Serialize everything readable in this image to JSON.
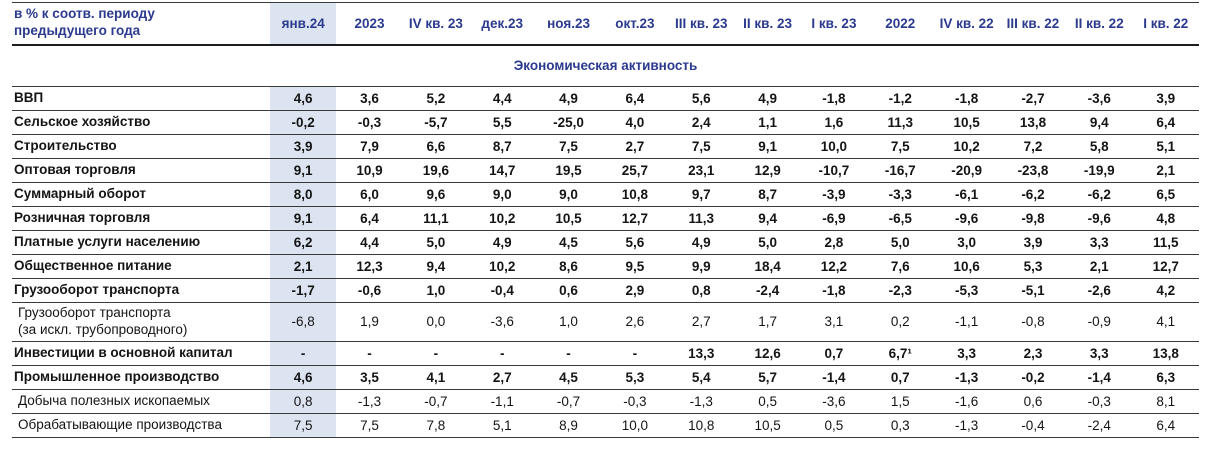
{
  "colors": {
    "header_text": "#2b3a8f",
    "highlight_bg": "#dde4f1",
    "value_text": "#141414",
    "border": "#3a3a3a"
  },
  "header": {
    "corner_label": "в % к соотв. периоду\nпредыдущего года"
  },
  "section_title": "Экономическая активность",
  "table": {
    "highlight_column": "янв.24",
    "highlight_column_index": 0,
    "columns": [
      "янв.24",
      "2023",
      "IV кв. 23",
      "дек.23",
      "ноя.23",
      "окт.23",
      "III кв. 23",
      "II кв. 23",
      "I кв. 23",
      "2022",
      "IV кв. 22",
      "III кв. 22",
      "II кв. 22",
      "I кв. 22"
    ],
    "rows": [
      {
        "label": "ВВП",
        "bold": true,
        "sub": false,
        "values": [
          "4,6",
          "3,6",
          "5,2",
          "4,4",
          "4,9",
          "6,4",
          "5,6",
          "4,9",
          "-1,8",
          "-1,2",
          "-1,8",
          "-2,7",
          "-3,6",
          "3,9"
        ]
      },
      {
        "label": "Сельское хозяйство",
        "bold": true,
        "sub": false,
        "values": [
          "-0,2",
          "-0,3",
          "-5,7",
          "5,5",
          "-25,0",
          "4,0",
          "2,4",
          "1,1",
          "1,6",
          "11,3",
          "10,5",
          "13,8",
          "9,4",
          "6,4"
        ]
      },
      {
        "label": "Строительство",
        "bold": true,
        "sub": false,
        "values": [
          "3,9",
          "7,9",
          "6,6",
          "8,7",
          "7,5",
          "2,7",
          "7,5",
          "9,1",
          "10,0",
          "7,5",
          "10,2",
          "7,2",
          "5,8",
          "5,1"
        ]
      },
      {
        "label": "Оптовая торговля",
        "bold": true,
        "sub": false,
        "values": [
          "9,1",
          "10,9",
          "19,6",
          "14,7",
          "19,5",
          "25,7",
          "23,1",
          "12,9",
          "-10,7",
          "-16,7",
          "-20,9",
          "-23,8",
          "-19,9",
          "2,1"
        ]
      },
      {
        "label": "Суммарный оборот",
        "bold": true,
        "sub": false,
        "values": [
          "8,0",
          "6,0",
          "9,6",
          "9,0",
          "9,0",
          "10,8",
          "9,7",
          "8,7",
          "-3,9",
          "-3,3",
          "-6,1",
          "-6,2",
          "-6,2",
          "6,5"
        ]
      },
      {
        "label": "Розничная торговля",
        "bold": true,
        "sub": false,
        "values": [
          "9,1",
          "6,4",
          "11,1",
          "10,2",
          "10,5",
          "12,7",
          "11,3",
          "9,4",
          "-6,9",
          "-6,5",
          "-9,6",
          "-9,8",
          "-9,6",
          "4,8"
        ]
      },
      {
        "label": "Платные услуги населению",
        "bold": true,
        "sub": false,
        "values": [
          "6,2",
          "4,4",
          "5,0",
          "4,9",
          "4,5",
          "5,6",
          "4,9",
          "5,0",
          "2,8",
          "5,0",
          "3,0",
          "3,9",
          "3,3",
          "11,5"
        ]
      },
      {
        "label": "Общественное питание",
        "bold": true,
        "sub": false,
        "values": [
          "2,1",
          "12,3",
          "9,4",
          "10,2",
          "8,6",
          "9,5",
          "9,9",
          "18,4",
          "12,2",
          "7,6",
          "10,6",
          "5,3",
          "2,1",
          "12,7"
        ]
      },
      {
        "label": "Грузооборот транспорта",
        "bold": true,
        "sub": false,
        "values": [
          "-1,7",
          "-0,6",
          "1,0",
          "-0,4",
          "0,6",
          "2,9",
          "0,8",
          "-2,4",
          "-1,8",
          "-2,3",
          "-5,3",
          "-5,1",
          "-2,6",
          "4,2"
        ]
      },
      {
        "label": "Грузооборот транспорта\n(за искл. трубопроводного)",
        "bold": false,
        "sub": true,
        "values": [
          "-6,8",
          "1,9",
          "0,0",
          "-3,6",
          "1,0",
          "2,6",
          "2,7",
          "1,7",
          "3,1",
          "0,2",
          "-1,1",
          "-0,8",
          "-0,9",
          "4,1"
        ]
      },
      {
        "label": "Инвестиции в основной капитал",
        "bold": true,
        "sub": false,
        "values": [
          "-",
          "-",
          "-",
          "-",
          "-",
          "-",
          "13,3",
          "12,6",
          "0,7",
          "6,7¹",
          "3,3",
          "2,3",
          "3,3",
          "13,8"
        ]
      },
      {
        "label": "Промышленное производство",
        "bold": true,
        "sub": false,
        "values": [
          "4,6",
          "3,5",
          "4,1",
          "2,7",
          "4,5",
          "5,3",
          "5,4",
          "5,7",
          "-1,4",
          "0,7",
          "-1,3",
          "-0,2",
          "-1,4",
          "6,3"
        ]
      },
      {
        "label": "Добыча полезных ископаемых",
        "bold": false,
        "sub": true,
        "values": [
          "0,8",
          "-1,3",
          "-0,7",
          "-1,1",
          "-0,7",
          "-0,3",
          "-1,3",
          "0,5",
          "-3,6",
          "1,5",
          "-1,6",
          "0,6",
          "-0,3",
          "8,1"
        ]
      },
      {
        "label": "Обрабатывающие производства",
        "bold": false,
        "sub": true,
        "values": [
          "7,5",
          "7,5",
          "7,8",
          "5,1",
          "8,9",
          "10,0",
          "10,8",
          "10,5",
          "0,5",
          "0,3",
          "-1,3",
          "-0,4",
          "-2,4",
          "6,4"
        ]
      }
    ]
  }
}
